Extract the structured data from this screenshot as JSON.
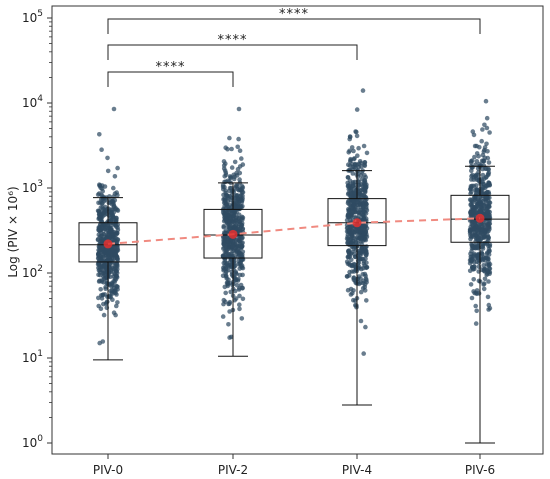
{
  "chart_data": {
    "type": "box",
    "title": "",
    "xlabel": "",
    "ylabel": "Log (PIV × 10⁶)",
    "yscale": "log",
    "ylim": [
      0.7,
      110000
    ],
    "categories": [
      "PIV-0",
      "PIV-2",
      "PIV-4",
      "PIV-6"
    ],
    "y_ticks": [
      {
        "value": 1,
        "base": "10",
        "exp": "0"
      },
      {
        "value": 10,
        "base": "10",
        "exp": "1"
      },
      {
        "value": 100,
        "base": "10",
        "exp": "2"
      },
      {
        "value": 1000,
        "base": "10",
        "exp": "3"
      },
      {
        "value": 10000,
        "base": "10",
        "exp": "4"
      },
      {
        "value": 100000,
        "base": "10",
        "exp": "5"
      }
    ],
    "boxes": [
      {
        "category": "PIV-0",
        "whisker_low": 9.5,
        "q1": 135,
        "median": 215,
        "q3": 390,
        "whisker_high": 770,
        "mean": 220,
        "max_point": 8500,
        "min_point": 9.5
      },
      {
        "category": "PIV-2",
        "whisker_low": 10.5,
        "q1": 150,
        "median": 280,
        "q3": 560,
        "whisker_high": 1150,
        "mean": 285,
        "max_point": 8500,
        "min_point": 10.5
      },
      {
        "category": "PIV-4",
        "whisker_low": 2.8,
        "q1": 210,
        "median": 390,
        "q3": 750,
        "whisker_high": 1600,
        "mean": 390,
        "max_point": 14000,
        "min_point": 2.8
      },
      {
        "category": "PIV-6",
        "whisker_low": 1.0,
        "q1": 230,
        "median": 430,
        "q3": 820,
        "whisker_high": 1800,
        "mean": 440,
        "max_point": 10500,
        "min_point": 1.0
      }
    ],
    "mean_line": {
      "values": [
        220,
        285,
        390,
        440
      ],
      "color": "#f08a80"
    },
    "point_color": "#2f4b63",
    "mean_marker_color": "#e03030",
    "significance": [
      {
        "from": "PIV-0",
        "to": "PIV-2",
        "label": "****"
      },
      {
        "from": "PIV-0",
        "to": "PIV-4",
        "label": "****"
      },
      {
        "from": "PIV-0",
        "to": "PIV-6",
        "label": "****"
      }
    ],
    "grid": false,
    "legend": "none"
  }
}
